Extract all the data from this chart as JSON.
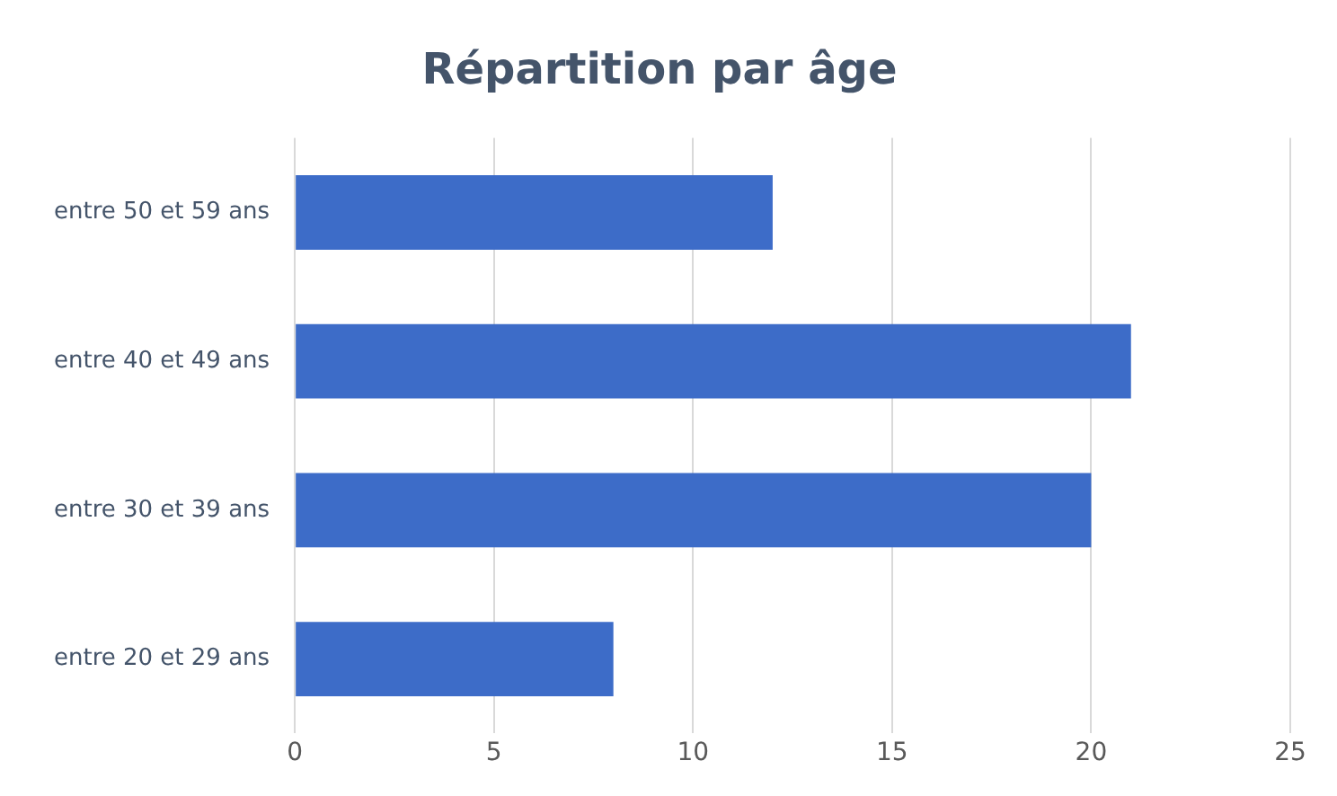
{
  "chart_data": {
    "type": "bar",
    "orientation": "horizontal",
    "title": "Répartition par âge",
    "categories": [
      "entre 50 et 59 ans",
      "entre 40 et 49 ans",
      "entre 30 et 39 ans",
      "entre 20 et 29 ans"
    ],
    "values": [
      12,
      21,
      20,
      8
    ],
    "color": "#3d6cc8",
    "xlim": [
      0,
      25
    ],
    "xticks": [
      0,
      5,
      10,
      15,
      20,
      25
    ],
    "grid": "x",
    "legend": false
  }
}
